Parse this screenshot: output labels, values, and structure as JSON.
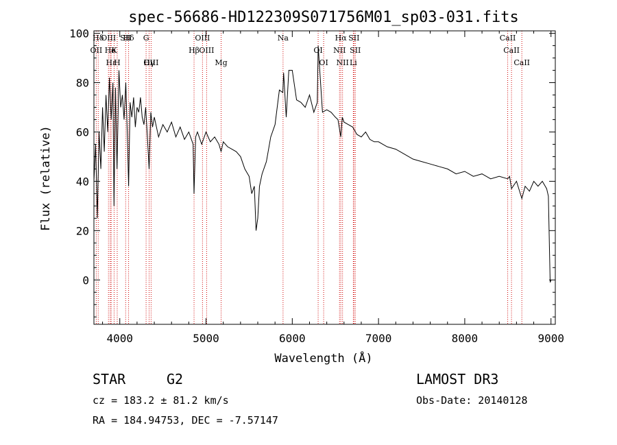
{
  "chart_data": {
    "type": "line",
    "title": "spec-56686-HD122309S071756M01_sp03-031.fits",
    "xlabel": "Wavelength (Å)",
    "ylabel": "Flux (relative)",
    "xlim": [
      3700,
      9050
    ],
    "ylim": [
      -18,
      101
    ],
    "x_ticks": [
      4000,
      5000,
      6000,
      7000,
      8000,
      9000
    ],
    "y_ticks": [
      0,
      20,
      40,
      60,
      80,
      100
    ],
    "grid": false,
    "series": [
      {
        "x": [
          3700,
          3720,
          3740,
          3760,
          3780,
          3800,
          3820,
          3840,
          3860,
          3880,
          3900,
          3920,
          3933,
          3950,
          3968,
          3990,
          4010,
          4030,
          4050,
          4070,
          4090,
          4102,
          4120,
          4140,
          4160,
          4180,
          4200,
          4220,
          4240,
          4260,
          4280,
          4300,
          4320,
          4340,
          4360,
          4380,
          4400,
          4450,
          4500,
          4550,
          4600,
          4650,
          4700,
          4750,
          4800,
          4850,
          4861,
          4880,
          4900,
          4950,
          5000,
          5050,
          5100,
          5150,
          5175,
          5200,
          5250,
          5300,
          5350,
          5400,
          5450,
          5500,
          5530,
          5560,
          5580,
          5600,
          5620,
          5650,
          5700,
          5750,
          5800,
          5850,
          5890,
          5900,
          5930,
          5960,
          6000,
          6050,
          6100,
          6150,
          6200,
          6250,
          6290,
          6300,
          6350,
          6400,
          6450,
          6500,
          6530,
          6563,
          6580,
          6600,
          6650,
          6700,
          6750,
          6800,
          6850,
          6900,
          6950,
          7000,
          7100,
          7200,
          7300,
          7400,
          7500,
          7600,
          7700,
          7800,
          7900,
          8000,
          8100,
          8200,
          8300,
          8400,
          8498,
          8520,
          8542,
          8600,
          8662,
          8700,
          8750,
          8800,
          8850,
          8900,
          8950,
          8970,
          8990,
          9000
        ],
        "y": [
          40,
          55,
          25,
          60,
          45,
          70,
          52,
          75,
          60,
          82,
          65,
          80,
          30,
          78,
          45,
          85,
          70,
          75,
          65,
          80,
          55,
          38,
          72,
          66,
          74,
          62,
          70,
          68,
          74,
          66,
          63,
          70,
          58,
          45,
          68,
          62,
          66,
          58,
          63,
          60,
          64,
          58,
          62,
          57,
          60,
          55,
          35,
          58,
          60,
          55,
          60,
          56,
          58,
          55,
          52,
          56,
          54,
          53,
          52,
          50,
          45,
          42,
          35,
          38,
          20,
          25,
          38,
          43,
          48,
          58,
          63,
          77,
          76,
          84,
          66,
          85,
          85,
          73,
          72,
          70,
          75,
          68,
          72,
          95,
          68,
          69,
          68,
          66,
          65,
          58,
          66,
          64,
          63,
          62,
          59,
          58,
          60,
          57,
          56,
          56,
          54,
          53,
          51,
          49,
          48,
          47,
          46,
          45,
          43,
          44,
          42,
          43,
          41,
          42,
          41,
          42,
          37,
          40,
          33,
          38,
          36,
          40,
          38,
          40,
          37,
          34,
          -1,
          0
        ]
      }
    ],
    "line_markers": [
      {
        "label": "Hδ",
        "x": 3750
      },
      {
        "label": "K",
        "x": 3934
      },
      {
        "label": "Hε",
        "x": 3900
      },
      {
        "label": "Hδ",
        "x": 4102
      },
      {
        "label": "OII",
        "x": 3727
      },
      {
        "label": "OIII",
        "x": 4363
      },
      {
        "label": "OIII",
        "x": 4959
      },
      {
        "label": "OIII",
        "x": 5007
      },
      {
        "label": "Hγ",
        "x": 4340
      },
      {
        "label": "G",
        "x": 4305
      },
      {
        "label": "Hβ",
        "x": 4861
      },
      {
        "label": "Mg",
        "x": 5175
      },
      {
        "label": "Na",
        "x": 5893
      },
      {
        "label": "OI",
        "x": 6300
      },
      {
        "label": "OI",
        "x": 6364
      },
      {
        "label": "Hα",
        "x": 6563
      },
      {
        "label": "NII",
        "x": 6548
      },
      {
        "label": "NII",
        "x": 6583
      },
      {
        "label": "SII",
        "x": 6716
      },
      {
        "label": "SII",
        "x": 6731
      },
      {
        "label": "Li",
        "x": 6708
      },
      {
        "label": "CaII",
        "x": 8498
      },
      {
        "label": "CaII",
        "x": 8542
      },
      {
        "label": "CaII",
        "x": 8662
      },
      {
        "label": "SII",
        "x": 4068
      },
      {
        "label": "He",
        "x": 3889
      },
      {
        "label": "H",
        "x": 3970
      },
      {
        "label": "OIII",
        "x": 3869
      }
    ]
  },
  "info": {
    "class": "STAR",
    "subclass": "G2",
    "cz": "cz = 183.2 ± 81.2 km/s",
    "radec": "RA = 184.94753, DEC =  -7.57147",
    "survey": "LAMOST DR3",
    "obsdate": "Obs-Date: 20140128"
  },
  "colors": {
    "spectrum": "#000000",
    "marker": "#d00000",
    "axis": "#000000"
  }
}
